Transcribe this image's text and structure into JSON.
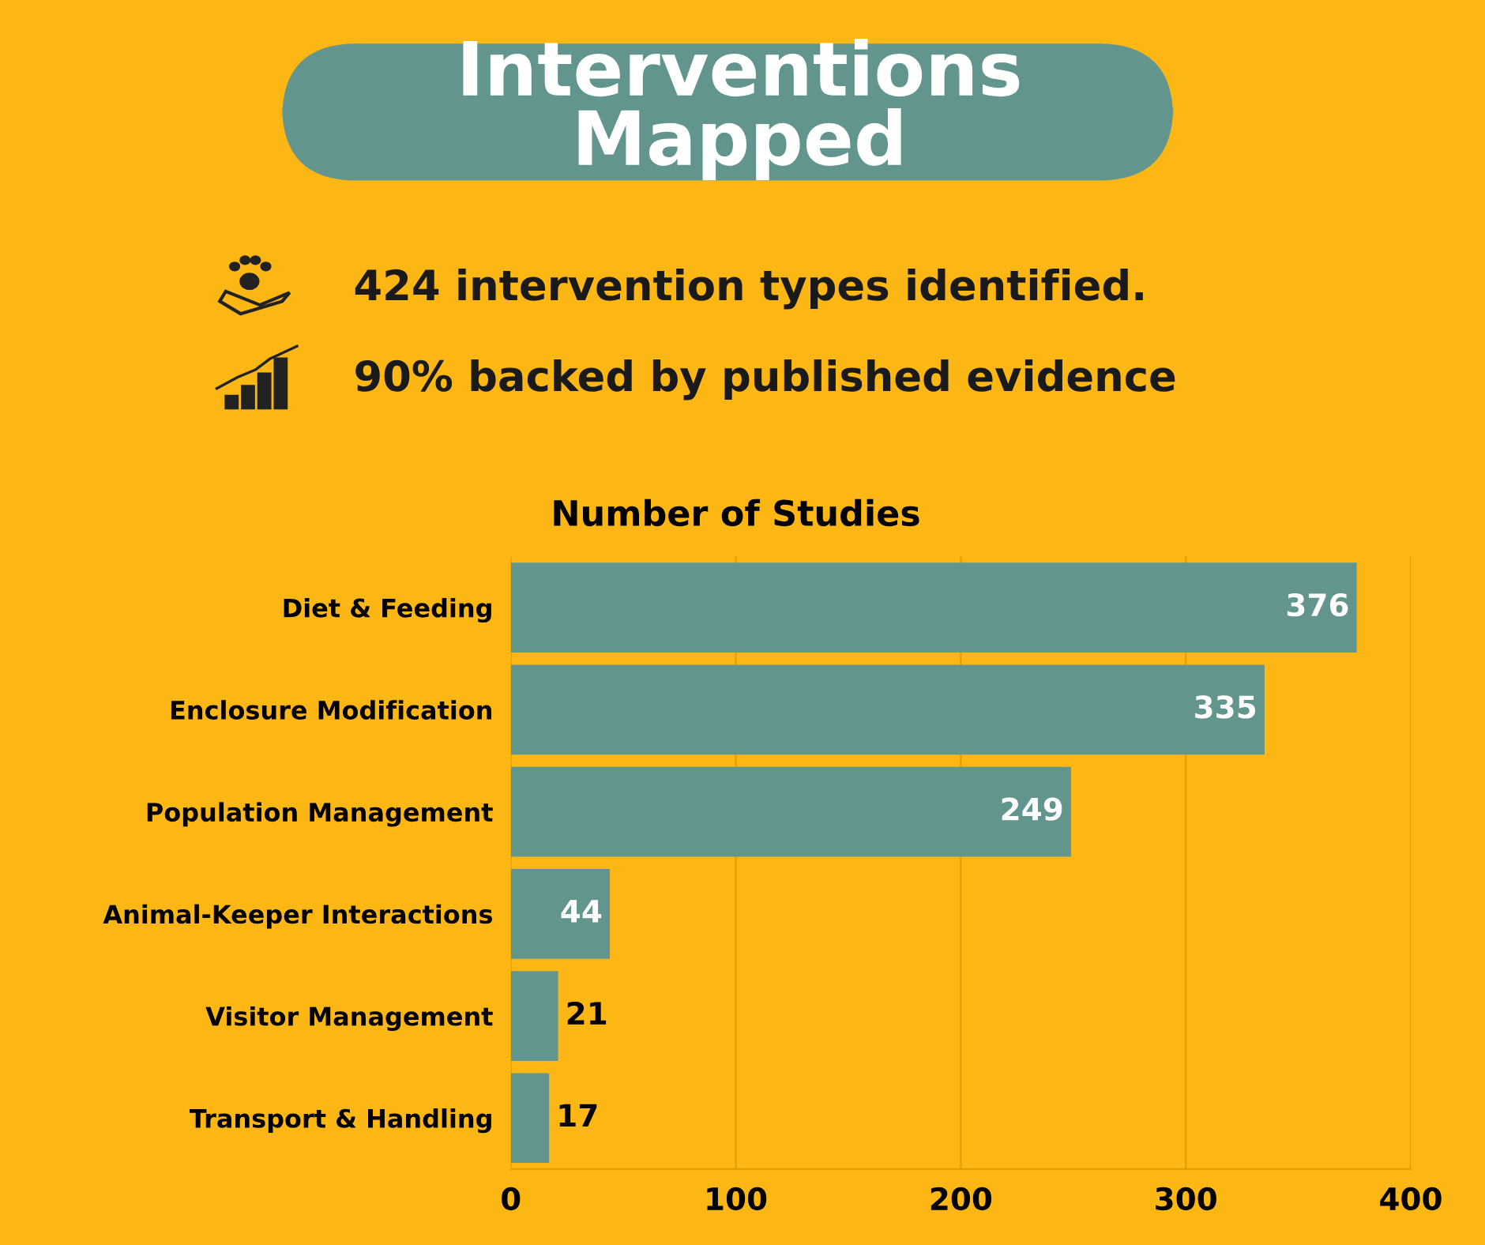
{
  "chart_data": {
    "type": "bar",
    "orientation": "horizontal",
    "title": "Number of Studies",
    "annotations": [
      "Interventions Mapped",
      "424 intervention types identified.",
      "90% backed by published evidence"
    ],
    "categories": [
      "Diet & Feeding",
      "Enclosure Modification",
      "Population Management",
      "Animal-Keeper Interactions",
      "Visitor Management",
      "Transport & Handling"
    ],
    "values": [
      376,
      335,
      249,
      44,
      21,
      17
    ],
    "color": "#62958d",
    "xlim": [
      0,
      400
    ],
    "xticks": [
      0,
      100,
      200,
      300,
      400
    ],
    "grid": "x",
    "data_labels": true
  }
}
